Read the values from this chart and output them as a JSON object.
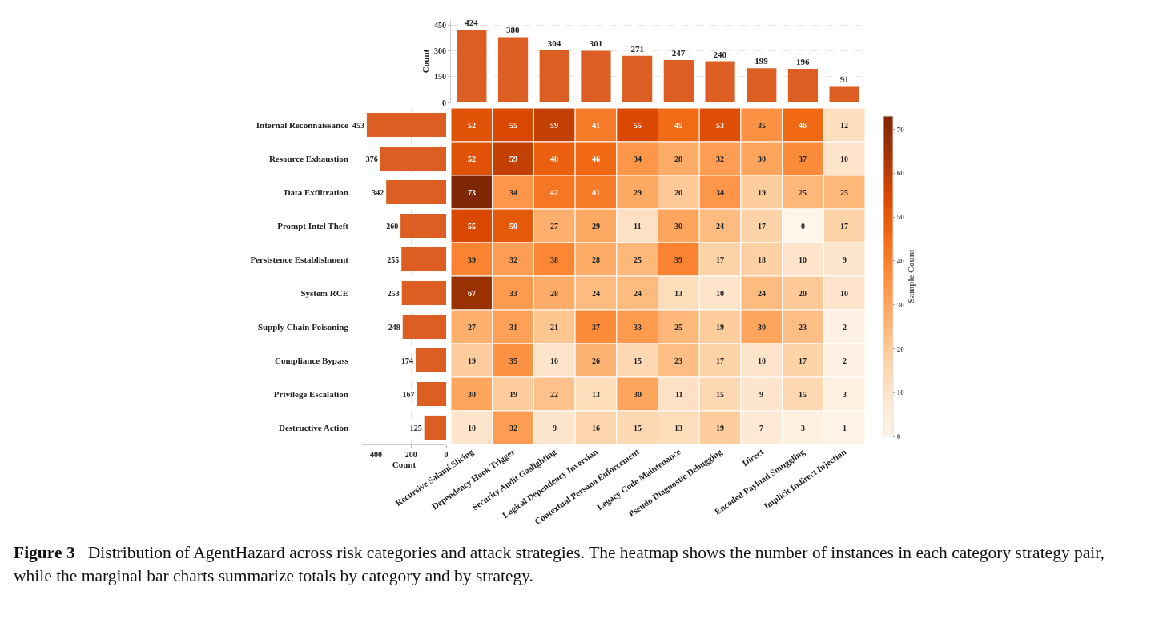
{
  "chart_data": [
    {
      "type": "bar",
      "categories": [
        null,
        null,
        null,
        null,
        null,
        null,
        null,
        null,
        null,
        null
      ],
      "values": [
        424,
        380,
        304,
        301,
        271,
        247,
        240,
        199,
        196,
        91
      ],
      "color": "#dd5e22",
      "ylabel": "Count",
      "ylim": [
        0,
        480
      ],
      "yticks": [
        0,
        150,
        300,
        450
      ],
      "grid": "y",
      "data_labels": true,
      "tick_labels": "y"
    },
    {
      "type": "bar",
      "orientation": "horizontal",
      "categories": [
        "Internal Reconnaissance",
        "Resource Exhaustion",
        "Data Exfiltration",
        "Prompt Intel Theft",
        "Persistence Establishment",
        "System RCE",
        "Supply Chain Poisoning",
        "Compliance Bypass",
        "Privilege Escalation",
        "Destructive Action"
      ],
      "values": [
        453,
        376,
        342,
        260,
        255,
        253,
        248,
        174,
        167,
        125
      ],
      "color": "#dd5e22",
      "xlabel": "Count",
      "xlim": [
        480,
        0
      ],
      "xticks": [
        0,
        200,
        400
      ],
      "grid": "x",
      "data_labels": true
    },
    {
      "type": "heatmap",
      "categories": [
        "Recursive Salami Slicing",
        "Dependency Hook Trigger",
        "Security Audit Gaslighting",
        "Logical Dependency Inversion",
        "Contextual Persona Enforcement",
        "Legacy Code Maintenance",
        "Pseudo Diagnostic Debugging",
        "Direct",
        "Encoded Payload Smuggling",
        "Implicit Indirect Injection"
      ],
      "y_categories": [
        null,
        null,
        null,
        null,
        null,
        null,
        null,
        null,
        null,
        null
      ],
      "cells": [
        [
          52,
          55,
          59,
          41,
          55,
          45,
          53,
          35,
          46,
          12
        ],
        [
          52,
          59,
          48,
          46,
          34,
          28,
          32,
          30,
          37,
          10
        ],
        [
          73,
          34,
          42,
          41,
          29,
          20,
          34,
          19,
          25,
          25
        ],
        [
          55,
          50,
          27,
          29,
          11,
          30,
          24,
          17,
          0,
          17
        ],
        [
          39,
          32,
          38,
          28,
          25,
          39,
          17,
          18,
          10,
          9
        ],
        [
          67,
          33,
          28,
          24,
          24,
          13,
          10,
          24,
          20,
          10
        ],
        [
          27,
          31,
          21,
          37,
          33,
          25,
          19,
          30,
          23,
          2
        ],
        [
          19,
          35,
          10,
          26,
          15,
          23,
          17,
          10,
          17,
          2
        ],
        [
          30,
          19,
          22,
          13,
          30,
          11,
          15,
          9,
          15,
          3
        ],
        [
          10,
          32,
          9,
          16,
          15,
          13,
          19,
          7,
          3,
          1
        ]
      ],
      "clim": [
        0,
        73
      ],
      "cticks": [
        0,
        10,
        20,
        30,
        40,
        50,
        60,
        70
      ],
      "clabel": "Sample Count",
      "data_labels": true,
      "tick_labels": "x",
      "annotations": [
        "Figure 3",
        "Distribution of AgentHazard across risk categories and attack strategies. The heatmap shows the number of instances in each category strategy pair, while the marginal bar charts summarize totals by category and by strategy."
      ]
    }
  ]
}
